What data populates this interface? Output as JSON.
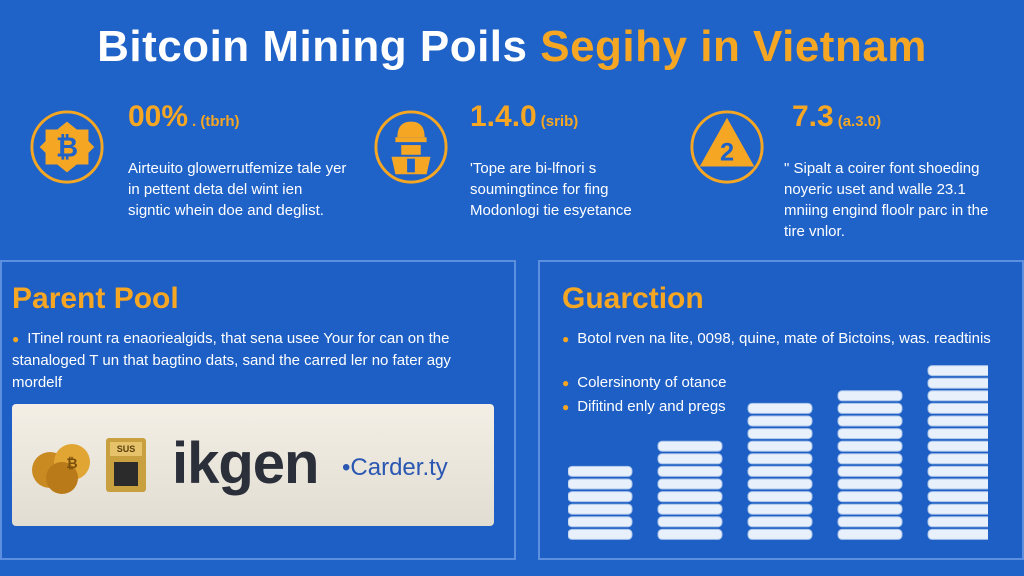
{
  "header": {
    "title_white": "Bitcoin Mining Poils",
    "title_yellow": "Segihy in Vietnam"
  },
  "stats": [
    {
      "icon": "bitcoin-icon",
      "value": "00%",
      "unit": ". (tbrh)",
      "text": "Airteuito glowerrutfemize tale yer in pettent deta del wint ien signtic whein doe and deglist."
    },
    {
      "icon": "miner-icon",
      "value": "1.4.0",
      "unit": "(srib)",
      "text": "'Tope are bi-lfnori s soumingtince for fing Modonlogi tie esyetance"
    },
    {
      "icon": "triangle-2-icon",
      "badge": "2",
      "value": "7.3",
      "unit": "(a.3.0)",
      "text": "\" Sipalt a coirer font shoeding noyeric uset and walle 23.1 mniing engind floolr parc in the tire vnlor."
    }
  ],
  "parent_pool": {
    "title": "Parent Pool",
    "text": "ITinel rount ra enaoriealgids, that sena usee Your for can on the stanaloged T un that bagtino dats, sand the carred ler no fater agy mordelf",
    "logo_word": "ikgen",
    "logo_sub": "•Carder.ty",
    "badge_text": "SUS"
  },
  "guarction": {
    "title": "Guarction",
    "bullets": [
      "Botol rven na lite, 0098, quine, mate of Bictoins, was. readtinis",
      "Colersinonty of otance",
      "Difitind enly and pregs"
    ]
  },
  "colors": {
    "background": "#1f63c9",
    "accent": "#f5a623"
  }
}
